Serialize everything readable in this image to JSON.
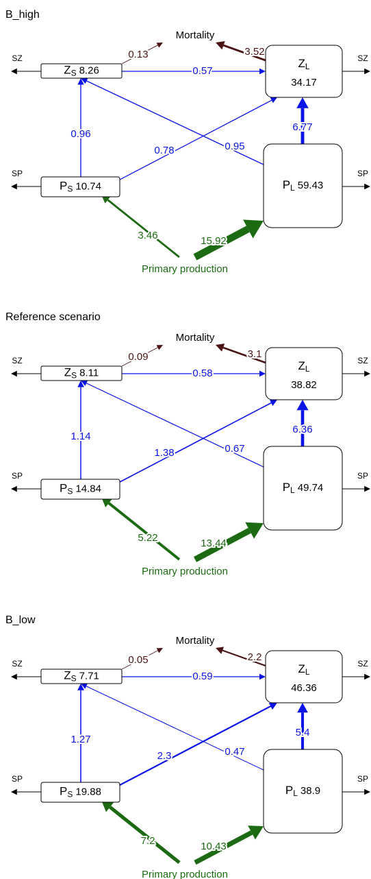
{
  "panels": [
    {
      "title": "B_high",
      "labels": {
        "sz_left": "SZ",
        "sz_right": "SZ",
        "sp_left": "SP",
        "sp_right": "SP",
        "mortality": "Mortality",
        "primary_production": "Primary production"
      },
      "nodes": [
        {
          "symbol": "Z",
          "subscript": "S",
          "value": "8.26"
        },
        {
          "symbol": "Z",
          "subscript": "L",
          "value": "34.17"
        },
        {
          "symbol": "P",
          "subscript": "S",
          "value": "10.74"
        },
        {
          "symbol": "P",
          "subscript": "L",
          "value": "59.43"
        }
      ],
      "flows": {
        "mortality_zs": "0.13",
        "mortality_zl": "3.52",
        "zs_zl": "0.57",
        "ps_zs": "0.96",
        "ps_zl": "0.78",
        "pl_zs": "0.95",
        "pl_zl": "6.77",
        "pp_ps": "3.46",
        "pp_pl": "15.92"
      }
    },
    {
      "title": "Reference scenario",
      "labels": {
        "sz_left": "SZ",
        "sz_right": "SZ",
        "sp_left": "SP",
        "sp_right": "SP",
        "mortality": "Mortality",
        "primary_production": "Primary production"
      },
      "nodes": [
        {
          "symbol": "Z",
          "subscript": "S",
          "value": "8.11"
        },
        {
          "symbol": "Z",
          "subscript": "L",
          "value": "38.82"
        },
        {
          "symbol": "P",
          "subscript": "S",
          "value": "14.84"
        },
        {
          "symbol": "P",
          "subscript": "L",
          "value": "49.74"
        }
      ],
      "flows": {
        "mortality_zs": "0.09",
        "mortality_zl": "3.1",
        "zs_zl": "0.58",
        "ps_zs": "1.14",
        "ps_zl": "1.38",
        "pl_zs": "0.67",
        "pl_zl": "6.36",
        "pp_ps": "5.22",
        "pp_pl": "13.44"
      }
    },
    {
      "title": "B_low",
      "labels": {
        "sz_left": "SZ",
        "sz_right": "SZ",
        "sp_left": "SP",
        "sp_right": "SP",
        "mortality": "Mortality",
        "primary_production": "Primary production"
      },
      "nodes": [
        {
          "symbol": "Z",
          "subscript": "S",
          "value": "7.71"
        },
        {
          "symbol": "Z",
          "subscript": "L",
          "value": "46.36"
        },
        {
          "symbol": "P",
          "subscript": "S",
          "value": "19.88"
        },
        {
          "symbol": "P",
          "subscript": "L",
          "value": "38.9"
        }
      ],
      "flows": {
        "mortality_zs": "0.05",
        "mortality_zl": "2.2",
        "zs_zl": "0.59",
        "ps_zs": "1.27",
        "ps_zl": "2.3",
        "pl_zs": "0.47",
        "pl_zl": "5.4",
        "pp_ps": "7.2",
        "pp_pl": "10.43"
      }
    }
  ]
}
